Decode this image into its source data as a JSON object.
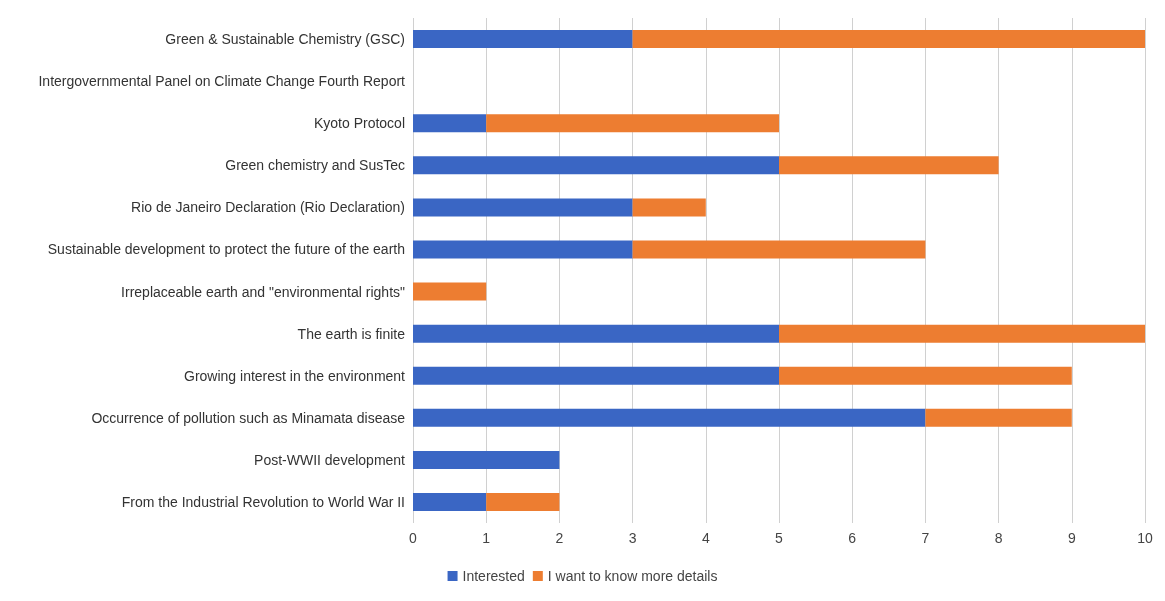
{
  "chart_data": {
    "type": "bar",
    "orientation": "horizontal",
    "stacked": true,
    "categories": [
      "Green & Sustainable Chemistry (GSC)",
      "Intergovernmental Panel on Climate Change Fourth Report",
      "Kyoto Protocol",
      "Green chemistry and SusTec",
      "Rio de Janeiro Declaration (Rio Declaration)",
      "Sustainable development to protect the future of the earth",
      "Irreplaceable earth and \"environmental rights\"",
      "The earth is finite",
      "Growing interest in the environment",
      "Occurrence of pollution such as Minamata disease",
      "Post-WWII development",
      "From the Industrial Revolution to World War II"
    ],
    "series": [
      {
        "name": "Interested",
        "color": "#3a66c4",
        "values": [
          3,
          0,
          1,
          5,
          3,
          3,
          0,
          5,
          5,
          7,
          2,
          1
        ]
      },
      {
        "name": "I want to know more details",
        "color": "#ed7d31",
        "values": [
          7,
          0,
          4,
          3,
          1,
          4,
          1,
          5,
          4,
          2,
          0,
          1
        ]
      }
    ],
    "xlim": [
      0,
      10
    ],
    "xticks": [
      0,
      1,
      2,
      3,
      4,
      5,
      6,
      7,
      8,
      9,
      10
    ],
    "grid": "x",
    "legend": "bottom"
  }
}
